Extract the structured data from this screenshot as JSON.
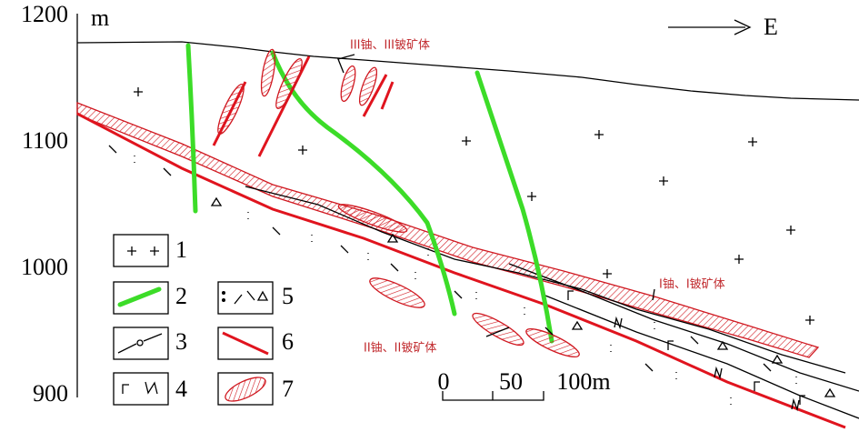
{
  "axis": {
    "unit": "m",
    "ticks": [
      "1200",
      "1100",
      "1000",
      "900"
    ]
  },
  "direction": "E",
  "annotations": [
    "III铀、III铍矿体",
    "I铀、I铍矿体",
    "II铀、II铍矿体"
  ],
  "scale_bar": [
    "0",
    "50",
    "100m"
  ],
  "legend": [
    "1",
    "2",
    "3",
    "4",
    "5",
    "6",
    "7"
  ]
}
